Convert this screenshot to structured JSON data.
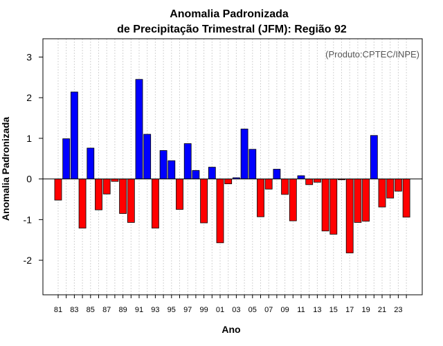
{
  "chart_data": {
    "type": "bar",
    "title": "Anomalia Padronizada",
    "subtitle": "de Precipitação Trimestral (JFM): Região 92",
    "xlabel": "Ano",
    "ylabel": "Anomalia Padronizada",
    "credit": "(Produto:CPTEC/INPE)",
    "ylim": [
      -2.85,
      3.45
    ],
    "yticks": [
      -2,
      -1,
      0,
      1,
      2,
      3
    ],
    "grid": true,
    "years": [
      1981,
      1982,
      1983,
      1984,
      1985,
      1986,
      1987,
      1988,
      1989,
      1990,
      1991,
      1992,
      1993,
      1994,
      1995,
      1996,
      1997,
      1998,
      1999,
      2000,
      2001,
      2002,
      2003,
      2004,
      2005,
      2006,
      2007,
      2008,
      2009,
      2010,
      2011,
      2012,
      2013,
      2014,
      2015,
      2016,
      2017,
      2018,
      2019,
      2020,
      2021,
      2022,
      2023,
      2024
    ],
    "xtick_labels": [
      "81",
      "83",
      "85",
      "87",
      "89",
      "91",
      "93",
      "95",
      "97",
      "99",
      "01",
      "03",
      "05",
      "07",
      "09",
      "11",
      "13",
      "15",
      "17",
      "19",
      "21",
      "23"
    ],
    "values": [
      -0.52,
      0.99,
      2.14,
      -1.21,
      0.76,
      -0.76,
      -0.37,
      -0.06,
      -0.85,
      -1.07,
      2.45,
      1.1,
      -1.21,
      0.7,
      0.45,
      -0.75,
      0.87,
      0.21,
      -1.08,
      0.29,
      -1.57,
      -0.12,
      0.03,
      1.23,
      0.73,
      -0.93,
      -0.25,
      0.24,
      -0.38,
      -1.03,
      0.08,
      -0.14,
      -0.08,
      -1.28,
      -1.36,
      -0.02,
      -1.82,
      -1.07,
      -1.04,
      1.07,
      -0.69,
      -0.47,
      -0.3,
      -0.94
    ],
    "colors": {
      "positive": "#0000ff",
      "negative": "#ff0000",
      "bar_edge": "#000000",
      "grid": "#d3d3d3",
      "credit": "#555555"
    }
  }
}
